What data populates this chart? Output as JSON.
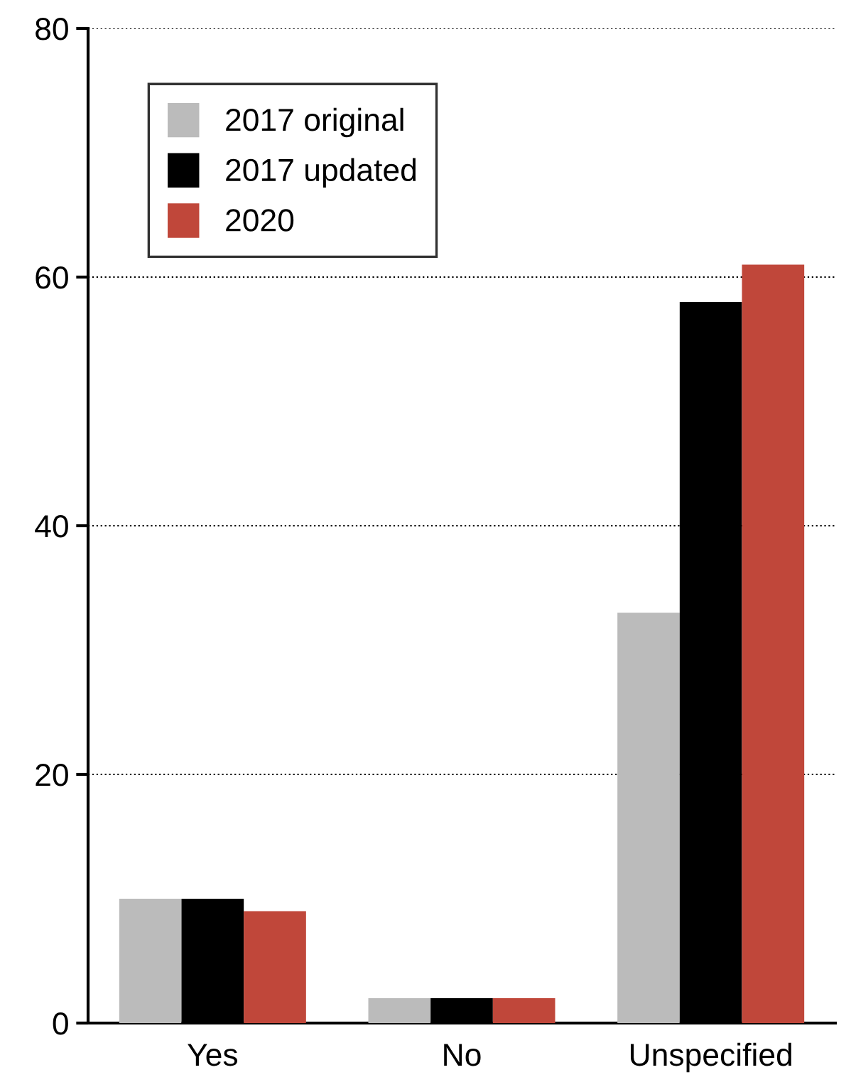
{
  "chart_data": {
    "type": "bar",
    "categories": [
      "Yes",
      "No",
      "Unspecified"
    ],
    "series": [
      {
        "name": "2017 original",
        "color": "#bbbbbb",
        "values": [
          10,
          2,
          33
        ]
      },
      {
        "name": "2017 updated",
        "color": "#000000",
        "values": [
          10,
          2,
          58
        ]
      },
      {
        "name": "2020",
        "color": "#c0473a",
        "values": [
          9,
          2,
          61
        ]
      }
    ],
    "ylim": [
      0,
      80
    ],
    "yticks": [
      0,
      20,
      40,
      60,
      80
    ],
    "grid": "y",
    "legend": "top left"
  }
}
